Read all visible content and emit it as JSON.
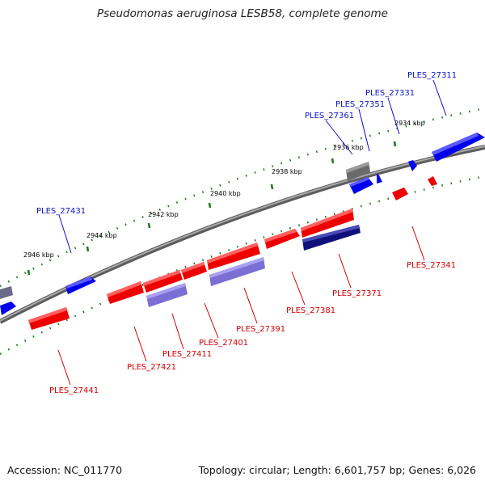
{
  "title": "Pseudomonas aeruginosa LESB58, complete genome",
  "accession": "Accession: NC_011770",
  "summary": "Topology: circular; Length: 6,601,757 bp; Genes: 6,026",
  "colors": {
    "forward_gene": "#ee0000",
    "reverse_gene": "#0000ee",
    "feature_purple": "#7b6fd6",
    "feature_navy": "#10107a",
    "feature_gray": "#6a6a6a",
    "backbone": "#7a7a7a",
    "tick": "#1a7a1a",
    "label_blue": "#0a14c8",
    "label_red": "#d40000"
  },
  "ticks": [
    "2934 kbp",
    "2936 kbp",
    "2938 kbp",
    "2940 kbp",
    "2942 kbp",
    "2944 kbp",
    "2946 kbp"
  ],
  "genes_top": [
    "PLES_27311",
    "PLES_27331",
    "PLES_27351",
    "PLES_27361",
    "PLES_27431"
  ],
  "genes_bottom": [
    "PLES_27341",
    "PLES_27371",
    "PLES_27381",
    "PLES_27391",
    "PLES_27401",
    "PLES_27411",
    "PLES_27421",
    "PLES_27441"
  ]
}
